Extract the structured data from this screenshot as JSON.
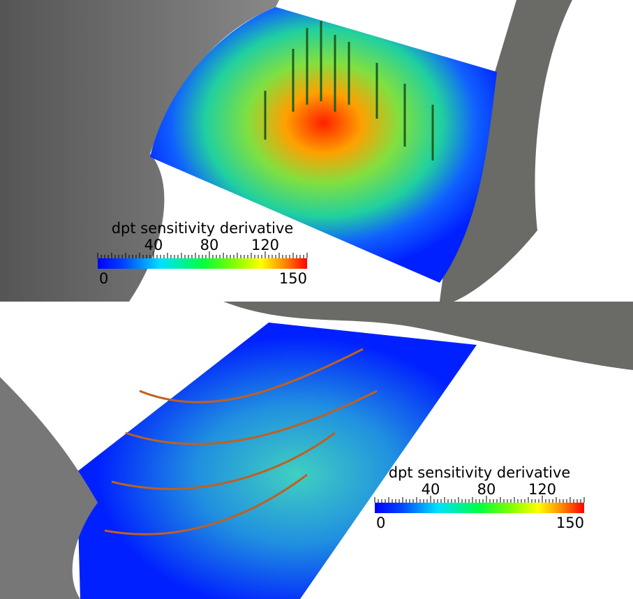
{
  "panels": [
    {
      "colorbar": {
        "title": "dpt sensitivity derivative",
        "range": [
          0,
          150
        ],
        "ticks": [
          40,
          80,
          120
        ]
      }
    },
    {
      "colorbar": {
        "title": "dpt sensitivity derivative",
        "range": [
          0,
          150
        ],
        "ticks": [
          40,
          80,
          120
        ]
      }
    }
  ]
}
